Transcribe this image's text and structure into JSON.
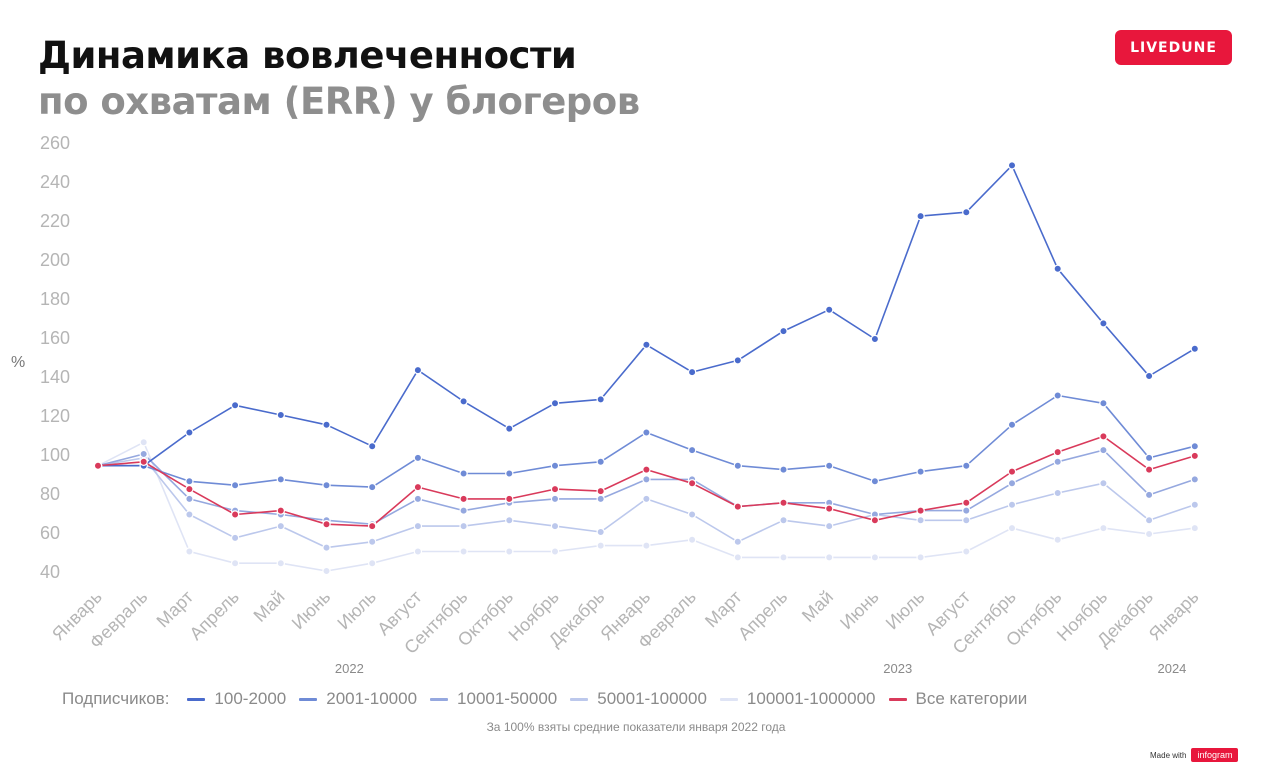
{
  "header": {
    "title_line1": "Динамика вовлеченности",
    "title_line2": "по охватам (ERR) у блогеров"
  },
  "brand": {
    "logo_text": "LIVEDUNE",
    "made_with": "Made with",
    "infogram": "infogram",
    "accent_color": "#e8173c"
  },
  "legend": {
    "title": "Подписчиков:"
  },
  "footnote": "За 100% взяты средние показатели января 2022 года",
  "chart_data": {
    "type": "line",
    "ylabel": "%",
    "xlabel": "",
    "ylim": [
      40,
      260
    ],
    "yticks": [
      40,
      60,
      80,
      100,
      120,
      140,
      160,
      180,
      200,
      220,
      240,
      260
    ],
    "grid": false,
    "legend_position": "bottom",
    "categories": [
      "Январь",
      "Февраль",
      "Март",
      "Апрель",
      "Май",
      "Июнь",
      "Июль",
      "Август",
      "Сентябрь",
      "Октябрь",
      "Ноябрь",
      "Декабрь",
      "Январь",
      "Февраль",
      "Март",
      "Апрель",
      "Май",
      "Июнь",
      "Июль",
      "Август",
      "Сентябрь",
      "Октябрь",
      "Ноябрь",
      "Декабрь",
      "Январь"
    ],
    "year_labels": [
      {
        "label": "2022",
        "at_index": 5.5
      },
      {
        "label": "2023",
        "at_index": 17.5
      },
      {
        "label": "2024",
        "at_index": 23.5
      }
    ],
    "series": [
      {
        "name": "100-2000",
        "color": "#4a6bcc",
        "values": [
          94,
          94,
          111,
          125,
          120,
          115,
          104,
          143,
          127,
          113,
          126,
          128,
          156,
          142,
          148,
          163,
          174,
          159,
          222,
          224,
          248,
          195,
          167,
          140,
          154
        ]
      },
      {
        "name": "2001-10000",
        "color": "#6f8bd6",
        "values": [
          94,
          94,
          86,
          84,
          87,
          84,
          83,
          98,
          90,
          90,
          94,
          96,
          111,
          102,
          94,
          92,
          94,
          86,
          91,
          94,
          115,
          130,
          126,
          98,
          104
        ]
      },
      {
        "name": "10001-50000",
        "color": "#95a8df",
        "values": [
          94,
          100,
          77,
          71,
          69,
          66,
          64,
          77,
          71,
          75,
          77,
          77,
          87,
          87,
          73,
          75,
          75,
          69,
          71,
          71,
          85,
          96,
          102,
          79,
          87
        ]
      },
      {
        "name": "50001-100000",
        "color": "#bcc8ec",
        "values": [
          94,
          98,
          69,
          57,
          63,
          52,
          55,
          63,
          63,
          66,
          63,
          60,
          77,
          69,
          55,
          66,
          63,
          69,
          66,
          66,
          74,
          80,
          85,
          66,
          74
        ]
      },
      {
        "name": "100001-1000000",
        "color": "#dfe4f5",
        "values": [
          94,
          106,
          50,
          44,
          44,
          40,
          44,
          50,
          50,
          50,
          50,
          53,
          53,
          56,
          47,
          47,
          47,
          47,
          47,
          50,
          62,
          56,
          62,
          59,
          62
        ]
      },
      {
        "name": "Все категории",
        "color": "#d93a5b",
        "values": [
          94,
          96,
          82,
          69,
          71,
          64,
          63,
          83,
          77,
          77,
          82,
          81,
          92,
          85,
          73,
          75,
          72,
          66,
          71,
          75,
          91,
          101,
          109,
          92,
          99
        ]
      }
    ]
  }
}
